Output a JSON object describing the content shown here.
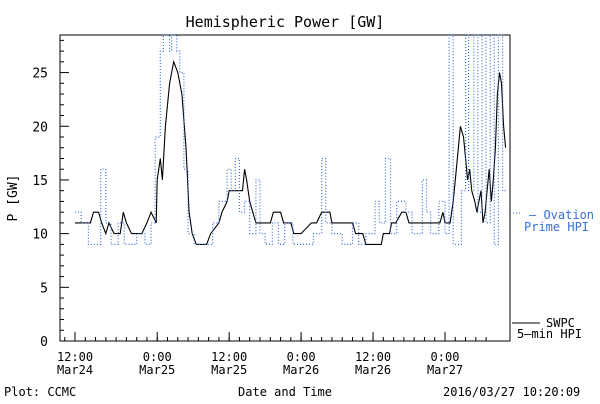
{
  "chart_data": {
    "type": "line",
    "title": "Hemispheric Power [GW]",
    "xlabel": "Date and Time",
    "ylabel": "P [GW]",
    "ylim": [
      0,
      28.5
    ],
    "xlim": [
      0,
      41
    ],
    "grid": false,
    "y_ticks": [
      0,
      5,
      10,
      15,
      20,
      25
    ],
    "x_ticks": [
      {
        "x": 0,
        "line1": "12:00",
        "line2": "Mar24"
      },
      {
        "x": 8,
        "line1": "0:00",
        "line2": "Mar25"
      },
      {
        "x": 15,
        "line1": "12:00",
        "line2": "Mar25"
      },
      {
        "x": 22,
        "line1": "0:00",
        "line2": "Mar26"
      },
      {
        "x": 29,
        "line1": "12:00",
        "line2": "Mar26"
      },
      {
        "x": 36,
        "line1": "0:00",
        "line2": "Mar27"
      }
    ],
    "series": [
      {
        "name": "SWPC 5-min HPI",
        "color": "#000000",
        "style": "solid",
        "points": [
          [
            0,
            11
          ],
          [
            1.5,
            11
          ],
          [
            1.8,
            12
          ],
          [
            2.3,
            12
          ],
          [
            2.6,
            11
          ],
          [
            3.0,
            10
          ],
          [
            3.3,
            11
          ],
          [
            3.8,
            10
          ],
          [
            4.4,
            10
          ],
          [
            4.7,
            12
          ],
          [
            5.0,
            11
          ],
          [
            5.5,
            10
          ],
          [
            6.5,
            10
          ],
          [
            7.0,
            11
          ],
          [
            7.4,
            12
          ],
          [
            7.9,
            11
          ],
          [
            8.0,
            15
          ],
          [
            8.3,
            17
          ],
          [
            8.5,
            15
          ],
          [
            8.8,
            20
          ],
          [
            9.2,
            24
          ],
          [
            9.6,
            26
          ],
          [
            10.0,
            25
          ],
          [
            10.4,
            23
          ],
          [
            10.8,
            18
          ],
          [
            11.1,
            12
          ],
          [
            11.4,
            10
          ],
          [
            11.8,
            9
          ],
          [
            12.8,
            9
          ],
          [
            13.2,
            10
          ],
          [
            14.0,
            11
          ],
          [
            14.3,
            12
          ],
          [
            14.8,
            13
          ],
          [
            15.0,
            14
          ],
          [
            16.3,
            14
          ],
          [
            16.5,
            16
          ],
          [
            16.7,
            15
          ],
          [
            17.0,
            13
          ],
          [
            17.3,
            12
          ],
          [
            17.6,
            11
          ],
          [
            19.0,
            11
          ],
          [
            19.3,
            12
          ],
          [
            20.0,
            12
          ],
          [
            20.3,
            11
          ],
          [
            21.0,
            11
          ],
          [
            21.3,
            10
          ],
          [
            22.0,
            10
          ],
          [
            23.0,
            11
          ],
          [
            23.5,
            11
          ],
          [
            24.0,
            12
          ],
          [
            24.8,
            12
          ],
          [
            25.0,
            11
          ],
          [
            27.0,
            11
          ],
          [
            27.3,
            10
          ],
          [
            28.0,
            10
          ],
          [
            28.3,
            9
          ],
          [
            29.8,
            9
          ],
          [
            30.0,
            10
          ],
          [
            30.6,
            10
          ],
          [
            30.8,
            11
          ],
          [
            31.2,
            11
          ],
          [
            31.8,
            12
          ],
          [
            32.2,
            12
          ],
          [
            32.5,
            11
          ],
          [
            33.0,
            11
          ],
          [
            33.8,
            11
          ],
          [
            34.2,
            11
          ],
          [
            35.5,
            11
          ],
          [
            35.8,
            12
          ],
          [
            36.0,
            11
          ],
          [
            36.5,
            11
          ],
          [
            36.8,
            13
          ],
          [
            37.0,
            15
          ],
          [
            37.3,
            18
          ],
          [
            37.5,
            20
          ],
          [
            37.8,
            19
          ],
          [
            38.0,
            17
          ],
          [
            38.2,
            15
          ],
          [
            38.4,
            16
          ],
          [
            38.6,
            14
          ],
          [
            38.9,
            13
          ],
          [
            39.1,
            12
          ],
          [
            39.3,
            13
          ],
          [
            39.5,
            14
          ],
          [
            39.7,
            11
          ],
          [
            39.9,
            12
          ],
          [
            40.1,
            14
          ],
          [
            40.3,
            16
          ],
          [
            40.5,
            13
          ],
          [
            40.7,
            15
          ],
          [
            40.9,
            18
          ],
          [
            41.1,
            23
          ],
          [
            41.3,
            25
          ],
          [
            41.5,
            24
          ],
          [
            41.7,
            20
          ],
          [
            41.9,
            18
          ]
        ]
      },
      {
        "name": "Ovation Prime HPI",
        "color": "#3b6fd4",
        "style": "dotted",
        "points": [
          [
            0,
            12
          ],
          [
            0.6,
            12
          ],
          [
            0.6,
            11
          ],
          [
            1.3,
            11
          ],
          [
            1.3,
            9
          ],
          [
            2.5,
            9
          ],
          [
            2.5,
            16
          ],
          [
            3.0,
            16
          ],
          [
            3.0,
            11
          ],
          [
            3.5,
            11
          ],
          [
            3.5,
            9
          ],
          [
            4.2,
            9
          ],
          [
            4.2,
            11
          ],
          [
            4.8,
            11
          ],
          [
            4.8,
            9
          ],
          [
            6.0,
            9
          ],
          [
            6.0,
            10
          ],
          [
            6.8,
            10
          ],
          [
            6.8,
            9
          ],
          [
            7.4,
            9
          ],
          [
            7.4,
            11
          ],
          [
            7.8,
            11
          ],
          [
            7.8,
            19
          ],
          [
            8.3,
            19
          ],
          [
            8.3,
            27
          ],
          [
            8.6,
            27
          ],
          [
            8.6,
            28.5
          ],
          [
            9.2,
            28.5
          ],
          [
            9.2,
            27
          ],
          [
            9.4,
            27
          ],
          [
            9.4,
            28.5
          ],
          [
            9.9,
            28.5
          ],
          [
            9.9,
            27
          ],
          [
            10.2,
            27
          ],
          [
            10.2,
            25
          ],
          [
            10.6,
            25
          ],
          [
            10.6,
            16
          ],
          [
            11.0,
            16
          ],
          [
            11.0,
            10
          ],
          [
            11.6,
            10
          ],
          [
            11.6,
            9
          ],
          [
            13.4,
            9
          ],
          [
            13.4,
            11
          ],
          [
            14.0,
            11
          ],
          [
            14.0,
            13
          ],
          [
            14.8,
            13
          ],
          [
            14.8,
            16
          ],
          [
            15.2,
            16
          ],
          [
            15.2,
            14
          ],
          [
            15.6,
            14
          ],
          [
            15.6,
            17
          ],
          [
            16.0,
            17
          ],
          [
            16.0,
            12
          ],
          [
            16.5,
            12
          ],
          [
            16.5,
            13
          ],
          [
            17.0,
            13
          ],
          [
            17.0,
            10
          ],
          [
            17.6,
            10
          ],
          [
            17.6,
            15
          ],
          [
            18.0,
            15
          ],
          [
            18.0,
            10
          ],
          [
            18.5,
            10
          ],
          [
            18.5,
            9
          ],
          [
            19.2,
            9
          ],
          [
            19.2,
            11
          ],
          [
            19.8,
            11
          ],
          [
            19.8,
            9
          ],
          [
            20.4,
            9
          ],
          [
            20.4,
            11
          ],
          [
            21.2,
            11
          ],
          [
            21.2,
            9
          ],
          [
            23.2,
            9
          ],
          [
            23.2,
            10
          ],
          [
            24.0,
            10
          ],
          [
            24.0,
            17
          ],
          [
            24.4,
            17
          ],
          [
            24.4,
            11
          ],
          [
            25.0,
            11
          ],
          [
            25.0,
            10
          ],
          [
            26.0,
            10
          ],
          [
            26.0,
            9
          ],
          [
            27.0,
            9
          ],
          [
            27.0,
            11
          ],
          [
            27.6,
            11
          ],
          [
            27.6,
            9
          ],
          [
            28.3,
            9
          ],
          [
            28.3,
            10
          ],
          [
            29.2,
            10
          ],
          [
            29.2,
            13
          ],
          [
            29.6,
            13
          ],
          [
            29.6,
            11
          ],
          [
            30.2,
            11
          ],
          [
            30.2,
            17
          ],
          [
            30.7,
            17
          ],
          [
            30.7,
            10
          ],
          [
            31.3,
            10
          ],
          [
            31.3,
            13
          ],
          [
            32.2,
            13
          ],
          [
            32.2,
            12
          ],
          [
            32.8,
            12
          ],
          [
            32.8,
            10
          ],
          [
            33.8,
            10
          ],
          [
            33.8,
            15
          ],
          [
            34.2,
            15
          ],
          [
            34.2,
            12
          ],
          [
            34.6,
            12
          ],
          [
            34.6,
            10
          ],
          [
            35.4,
            10
          ],
          [
            35.4,
            13
          ],
          [
            36.0,
            13
          ],
          [
            36.0,
            10
          ],
          [
            36.4,
            10
          ],
          [
            36.4,
            28.5
          ],
          [
            36.8,
            28.5
          ],
          [
            36.8,
            9
          ],
          [
            37.6,
            9
          ],
          [
            37.6,
            14
          ],
          [
            38.0,
            14
          ],
          [
            38.0,
            28.5
          ],
          [
            38.3,
            28.5
          ],
          [
            38.3,
            14
          ],
          [
            38.8,
            14
          ],
          [
            38.8,
            28.5
          ],
          [
            39.2,
            28.5
          ],
          [
            39.2,
            12
          ],
          [
            39.6,
            12
          ],
          [
            39.6,
            28.5
          ],
          [
            40.0,
            28.5
          ],
          [
            40.0,
            11
          ],
          [
            40.4,
            11
          ],
          [
            40.4,
            28.5
          ],
          [
            40.8,
            28.5
          ],
          [
            40.8,
            9
          ],
          [
            41.2,
            9
          ],
          [
            41.2,
            28.5
          ],
          [
            41.6,
            28.5
          ],
          [
            41.6,
            14
          ],
          [
            42.0,
            14
          ]
        ]
      }
    ]
  },
  "legend": {
    "ovation_line1": "— Ovation",
    "ovation_line2": "Prime HPI",
    "swpc_line1": "SWPC",
    "swpc_line2": "5–min HPI"
  },
  "footer": {
    "plot_credit": "Plot: CCMC",
    "timestamp": "2016/03/27 10:20:09"
  }
}
